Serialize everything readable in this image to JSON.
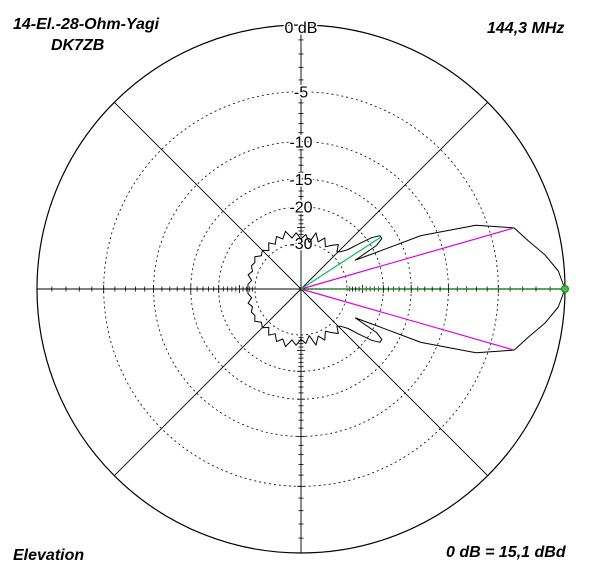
{
  "header": {
    "title_line1": "14-El.-28-Ohm-Yagi",
    "title_line2": "DK7ZB",
    "frequency": "144,3 MHz"
  },
  "footer": {
    "plane": "Elevation",
    "reference": "0 dB = 15,1 dBd"
  },
  "colors": {
    "pattern": "#000000",
    "grid": "#000000",
    "beamwidth_lines": "#e000e0",
    "main_lobe_axis": "#00b000",
    "sidelobe_marker": "#00c060",
    "marker_dot": "#40c040"
  },
  "chart_data": {
    "type": "polar",
    "title": "14-El.-28-Ohm-Yagi",
    "subtitle": "DK7ZB",
    "r_unit": "dB",
    "r_range": [
      -30,
      0
    ],
    "ring_labels": [
      "0 dB",
      "-5",
      "-10",
      "-15",
      "-20",
      "-30"
    ],
    "ring_values": [
      0,
      -5,
      -10,
      -15,
      -20,
      -30
    ],
    "angle_grid_deg": [
      0,
      45,
      90,
      135,
      180,
      225,
      270,
      315
    ],
    "beamwidth_deg": [
      16,
      -16
    ],
    "beamwidth_level_db": -3,
    "sidelobe_marker_deg": 33,
    "sidelobe_level_db": -17.5,
    "main_lobe_deg": 0,
    "series": [
      {
        "name": "Elevation",
        "theta_deg": [
          0,
          4,
          8,
          12,
          16,
          20,
          24,
          26,
          28,
          30,
          32,
          34,
          36,
          38,
          40,
          43,
          46,
          50,
          55,
          60,
          65,
          70,
          75,
          80,
          85,
          90,
          95,
          100,
          105,
          110,
          115,
          120,
          125,
          130,
          135,
          140,
          145,
          150,
          155,
          160,
          165,
          170,
          175,
          180
        ],
        "r_db": [
          0,
          -0.4,
          -1.2,
          -2.2,
          -3,
          -6,
          -12,
          -20,
          -25,
          -19,
          -17.5,
          -17.5,
          -19,
          -22,
          -25,
          -27,
          -28,
          -26,
          -27.5,
          -29,
          -26.5,
          -28.5,
          -26,
          -29.5,
          -27,
          -28.5,
          -26.5,
          -28,
          -25.5,
          -27.5,
          -26,
          -28,
          -26.5,
          -28.5,
          -27,
          -28,
          -26.5,
          -27.5,
          -27,
          -28,
          -27,
          -28.5,
          -27.5,
          -27.5
        ]
      }
    ]
  }
}
